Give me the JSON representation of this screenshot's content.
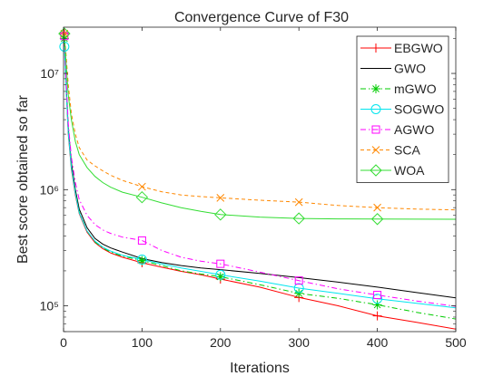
{
  "chart_data": {
    "type": "line",
    "title": "Convergence Curve of F30",
    "xlabel": "Iterations",
    "ylabel": "Best score obtained so far",
    "xlim": [
      0,
      500
    ],
    "ylim": [
      60000,
      25000000
    ],
    "yscale": "log",
    "grid": false,
    "legend_position": "top-right",
    "x_ticks": [
      0,
      100,
      200,
      300,
      400,
      500
    ],
    "x_tick_labels": [
      "0",
      "100",
      "200",
      "300",
      "400",
      "500"
    ],
    "y_ticks": [
      100000,
      1000000,
      10000000
    ],
    "y_tick_labels": [
      "10⁵",
      "10⁶",
      "10⁷"
    ],
    "series": [
      {
        "name": "EBGWO",
        "color": "#ff0000",
        "dash": "solid",
        "marker": "plus",
        "x": [
          1,
          3,
          6,
          10,
          15,
          20,
          30,
          40,
          50,
          60,
          75,
          100,
          125,
          150,
          175,
          200,
          250,
          300,
          350,
          400,
          450,
          500
        ],
        "y": [
          22000000,
          8500000,
          3000000,
          1500000,
          900000,
          620000,
          430000,
          350000,
          310000,
          285000,
          262000,
          235000,
          215000,
          198000,
          185000,
          170000,
          145000,
          118000,
          100000,
          82000,
          72000,
          63000
        ],
        "marker_x": [
          1,
          100,
          200,
          300,
          400
        ]
      },
      {
        "name": "GWO",
        "color": "#000000",
        "dash": "solid",
        "marker": "none",
        "x": [
          1,
          3,
          6,
          10,
          15,
          20,
          30,
          40,
          50,
          60,
          75,
          100,
          125,
          150,
          175,
          200,
          250,
          300,
          350,
          400,
          450,
          500
        ],
        "y": [
          21000000,
          9000000,
          3400000,
          1700000,
          1000000,
          680000,
          470000,
          380000,
          340000,
          315000,
          290000,
          255000,
          236000,
          222000,
          212000,
          205000,
          190000,
          175000,
          160000,
          145000,
          130000,
          117000
        ],
        "marker_x": []
      },
      {
        "name": "mGWO",
        "color": "#00cc00",
        "dash": "dashdot",
        "marker": "asterisk",
        "x": [
          1,
          3,
          6,
          10,
          15,
          20,
          30,
          40,
          50,
          60,
          75,
          100,
          125,
          150,
          175,
          200,
          250,
          300,
          350,
          400,
          450,
          500
        ],
        "y": [
          20000000,
          8800000,
          3200000,
          1600000,
          950000,
          640000,
          440000,
          355000,
          315000,
          290000,
          268000,
          245000,
          222000,
          200000,
          188000,
          178000,
          152000,
          128000,
          116000,
          102000,
          88000,
          77000
        ],
        "marker_x": [
          1,
          100,
          200,
          300,
          400
        ]
      },
      {
        "name": "SOGWO",
        "color": "#00e5ee",
        "dash": "solid",
        "marker": "circle",
        "x": [
          1,
          3,
          6,
          10,
          15,
          20,
          30,
          40,
          50,
          60,
          75,
          100,
          125,
          150,
          175,
          200,
          250,
          300,
          350,
          400,
          450,
          500
        ],
        "y": [
          17000000,
          8000000,
          3100000,
          1550000,
          930000,
          630000,
          440000,
          360000,
          320000,
          296000,
          272000,
          250000,
          230000,
          212000,
          198000,
          185000,
          163000,
          142000,
          128000,
          115000,
          105000,
          96000
        ],
        "marker_x": [
          1,
          100,
          200,
          300,
          400
        ]
      },
      {
        "name": "AGWO",
        "color": "#ff00ff",
        "dash": "dashdot",
        "marker": "square",
        "x": [
          1,
          3,
          6,
          10,
          15,
          20,
          30,
          40,
          50,
          60,
          75,
          100,
          125,
          150,
          175,
          200,
          250,
          300,
          350,
          400,
          450,
          500
        ],
        "y": [
          21000000,
          9500000,
          3700000,
          1900000,
          1150000,
          820000,
          600000,
          500000,
          450000,
          420000,
          390000,
          365000,
          300000,
          262000,
          242000,
          230000,
          195000,
          165000,
          140000,
          124000,
          110000,
          99000
        ],
        "marker_x": [
          1,
          100,
          200,
          300,
          400
        ]
      },
      {
        "name": "SCA",
        "color": "#ff8800",
        "dash": "dashed",
        "marker": "x",
        "x": [
          1,
          3,
          6,
          10,
          15,
          20,
          30,
          40,
          50,
          60,
          75,
          100,
          125,
          150,
          175,
          200,
          250,
          300,
          350,
          400,
          450,
          500
        ],
        "y": [
          22000000,
          15000000,
          8000000,
          4500000,
          3000000,
          2300000,
          1800000,
          1600000,
          1450000,
          1330000,
          1200000,
          1060000,
          960000,
          900000,
          870000,
          850000,
          810000,
          780000,
          730000,
          700000,
          680000,
          670000
        ],
        "marker_x": [
          1,
          100,
          200,
          300,
          400
        ]
      },
      {
        "name": "WOA",
        "color": "#33dd33",
        "dash": "solid",
        "marker": "diamond",
        "x": [
          1,
          3,
          6,
          10,
          15,
          20,
          30,
          40,
          50,
          60,
          75,
          100,
          125,
          150,
          175,
          200,
          250,
          300,
          350,
          400,
          450,
          500
        ],
        "y": [
          22000000,
          13000000,
          6500000,
          4000000,
          2600000,
          2000000,
          1550000,
          1300000,
          1150000,
          1050000,
          950000,
          860000,
          770000,
          700000,
          650000,
          610000,
          580000,
          565000,
          560000,
          558000,
          557000,
          556000
        ],
        "marker_x": [
          1,
          100,
          200,
          300,
          400
        ]
      }
    ]
  }
}
